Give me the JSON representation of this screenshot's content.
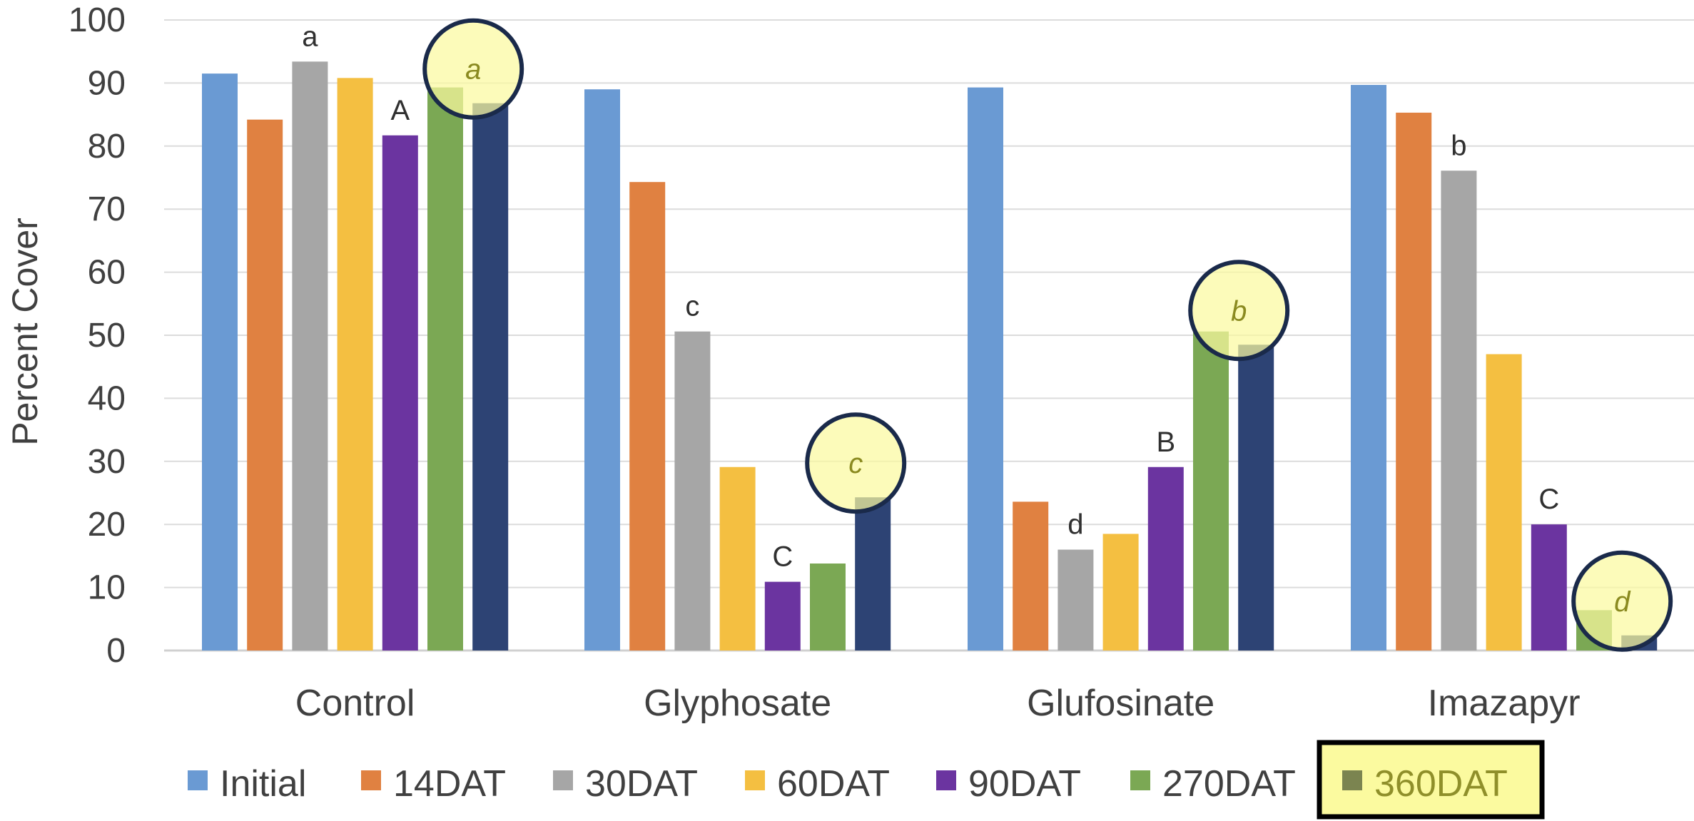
{
  "chart_data": {
    "type": "bar",
    "title": "",
    "xlabel": "",
    "ylabel": "Percent Cover",
    "ylim": [
      0,
      100
    ],
    "yticks": [
      0,
      10,
      20,
      30,
      40,
      50,
      60,
      70,
      80,
      90,
      100
    ],
    "grid": "horizontal",
    "legend_position": "bottom",
    "categories": [
      "Control",
      "Glyphosate",
      "Glufosinate",
      "Imazapyr"
    ],
    "series": [
      {
        "name": "Initial",
        "color": "#6a9ad3",
        "values": [
          91.5,
          89,
          89.3,
          89.7
        ]
      },
      {
        "name": "14DAT",
        "color": "#e08141",
        "values": [
          84.2,
          74.3,
          23.6,
          85.3
        ]
      },
      {
        "name": "30DAT",
        "color": "#a6a6a6",
        "values": [
          93.4,
          50.6,
          16,
          76.1
        ]
      },
      {
        "name": "60DAT",
        "color": "#f4bf41",
        "values": [
          90.8,
          29.1,
          18.5,
          47
        ]
      },
      {
        "name": "90DAT",
        "color": "#6b34a0",
        "values": [
          81.7,
          10.9,
          29.1,
          20
        ]
      },
      {
        "name": "270DAT",
        "color": "#7ba854",
        "values": [
          89.3,
          13.8,
          50.6,
          6.4
        ]
      },
      {
        "name": "360DAT",
        "color": "#2d4374",
        "values": [
          86.8,
          24.3,
          48.5,
          2.4
        ]
      }
    ],
    "annotations": [
      {
        "category": "Control",
        "series": "30DAT",
        "text": "a"
      },
      {
        "category": "Control",
        "series": "90DAT",
        "text": "A"
      },
      {
        "category": "Control",
        "series": "360DAT",
        "text": "a",
        "highlighted": true
      },
      {
        "category": "Glyphosate",
        "series": "30DAT",
        "text": "c"
      },
      {
        "category": "Glyphosate",
        "series": "90DAT",
        "text": "C"
      },
      {
        "category": "Glyphosate",
        "series": "360DAT",
        "text": "c",
        "highlighted": true
      },
      {
        "category": "Glufosinate",
        "series": "30DAT",
        "text": "d"
      },
      {
        "category": "Glufosinate",
        "series": "90DAT",
        "text": "B"
      },
      {
        "category": "Glufosinate",
        "series": "360DAT",
        "text": "b",
        "highlighted": true
      },
      {
        "category": "Imazapyr",
        "series": "30DAT",
        "text": "b"
      },
      {
        "category": "Imazapyr",
        "series": "90DAT",
        "text": "C"
      },
      {
        "category": "Imazapyr",
        "series": "360DAT",
        "text": "d",
        "highlighted": true
      }
    ],
    "highlight": {
      "series": "360DAT",
      "fill": "#fbfa9f",
      "ring": "#1a2a4a",
      "legend_box": "#000000"
    }
  }
}
